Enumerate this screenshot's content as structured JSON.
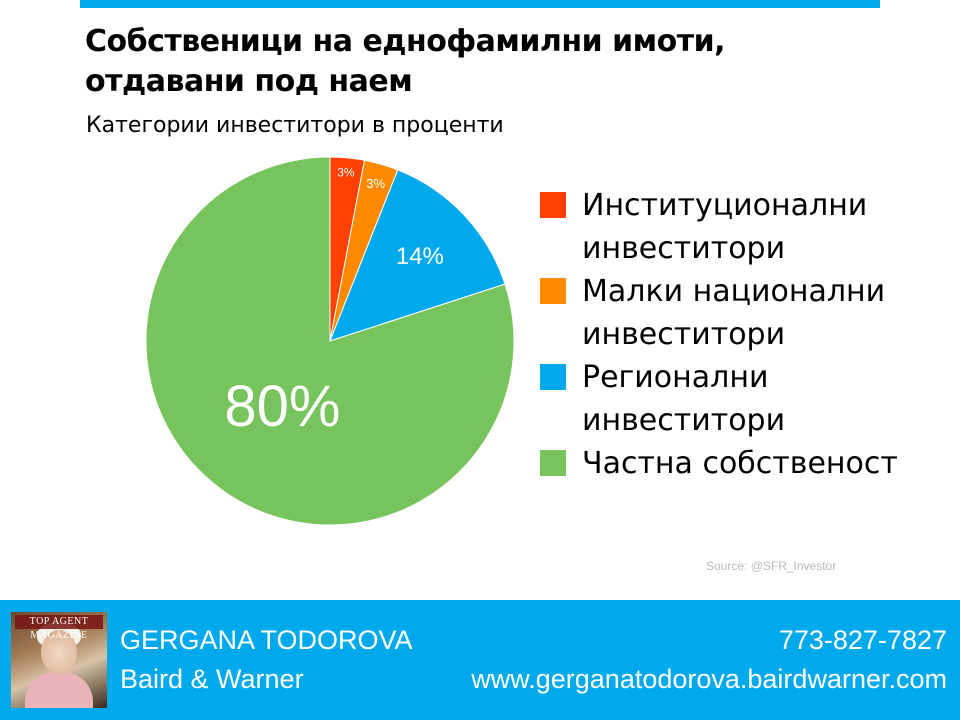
{
  "header": {
    "title": "Собственици на еднофамилни имоти, отдавани под наем",
    "subtitle": "Категории инвеститори в проценти"
  },
  "chart_data": {
    "type": "pie",
    "title": "Собственици на еднофамилни имоти, отдавани под наем",
    "subtitle": "Категории инвеститори в проценти",
    "legend_position": "right",
    "slices": [
      {
        "label": "Институционални инвеститори",
        "value": 3,
        "display": "3%",
        "color": "#ff4000"
      },
      {
        "label": "Малки национални инвеститори",
        "value": 3,
        "display": "3%",
        "color": "#ff8a00"
      },
      {
        "label": "Регионални инвеститори",
        "value": 14,
        "display": "14%",
        "color": "#00a9ec"
      },
      {
        "label": "Частна собственост",
        "value": 80,
        "display": "80%",
        "color": "#77c35c"
      }
    ]
  },
  "source": "Source: @SFR_Investor",
  "footer": {
    "agent_name": "GERGANA TODOROVA",
    "company": "Baird & Warner",
    "phone": "773-827-7827",
    "website": "www.gergana­todorova.bairdwarner.com",
    "photo_logo": "TOP AGENT MAGAZINE",
    "bar_color": "#00a9ec"
  }
}
